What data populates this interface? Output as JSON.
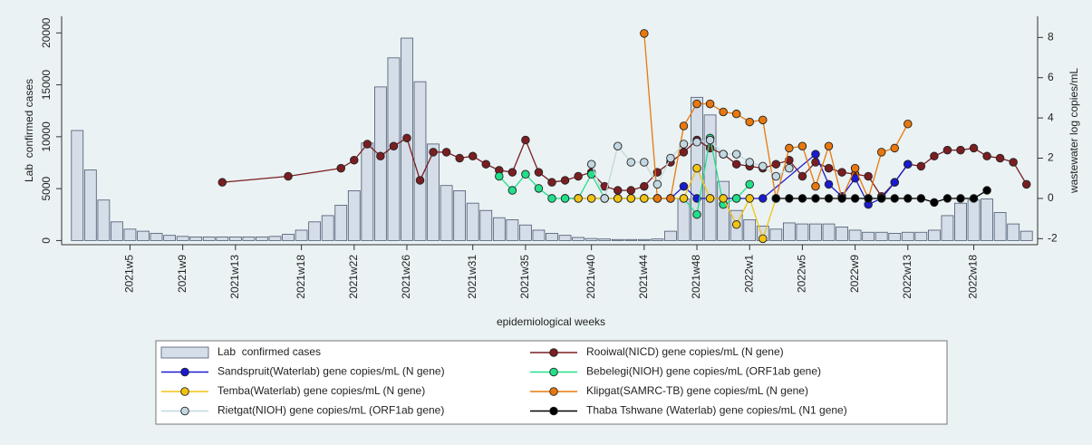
{
  "chart_data": {
    "type": "combo",
    "x_label": "epidemiological weeks",
    "y_label": "Lab  confirmed cases",
    "y2_label": "wastewater log copies/mL",
    "categories": [
      null,
      null,
      null,
      null,
      "2021w5",
      null,
      null,
      null,
      "2021w9",
      null,
      null,
      null,
      "2021w13",
      null,
      null,
      null,
      null,
      "2021w18",
      null,
      null,
      null,
      "2021w22",
      null,
      null,
      null,
      "2021w26",
      null,
      null,
      null,
      null,
      "2021w31",
      null,
      null,
      null,
      "2021w35",
      null,
      null,
      null,
      null,
      "2021w40",
      null,
      null,
      null,
      "2021w44",
      null,
      null,
      null,
      "2021w48",
      null,
      null,
      null,
      "2022w1",
      null,
      null,
      null,
      "2022w5",
      null,
      null,
      null,
      "2022w9",
      null,
      null,
      null,
      "2022w13",
      null,
      null,
      null,
      null,
      "2022w18",
      null,
      null,
      null,
      null
    ],
    "ylim": [
      -400,
      21600
    ],
    "yticks": [
      0,
      5000,
      10000,
      15000,
      20000
    ],
    "y2lim": [
      -2.3,
      9.05
    ],
    "y2ticks": [
      -2,
      0,
      2,
      4,
      6,
      8
    ],
    "series": [
      {
        "name": "Lab  confirmed cases",
        "type": "bar",
        "color": "#d5dde8",
        "values": [
          10600,
          6800,
          3900,
          1800,
          1100,
          900,
          700,
          500,
          400,
          350,
          350,
          350,
          350,
          350,
          350,
          400,
          600,
          1000,
          1800,
          2400,
          3400,
          4800,
          9400,
          14800,
          17600,
          19500,
          15300,
          9300,
          5300,
          4800,
          3600,
          2900,
          2200,
          2000,
          1500,
          1000,
          700,
          500,
          300,
          200,
          150,
          100,
          100,
          100,
          150,
          900,
          4000,
          13800,
          12100,
          5700,
          2900,
          2000,
          1400,
          1100,
          1700,
          1600,
          1600,
          1600,
          1300,
          1000,
          800,
          800,
          700,
          800,
          800,
          1000,
          2400,
          3600,
          3900,
          4000,
          2700,
          1600,
          900
        ]
      },
      {
        "name": "Rooiwal(NICD) gene copies/mL (N gene)",
        "type": "line",
        "axis": "y2",
        "color": "#7a1e22",
        "values": [
          null,
          null,
          null,
          null,
          null,
          null,
          null,
          null,
          null,
          null,
          null,
          0.8,
          null,
          null,
          null,
          null,
          1.1,
          null,
          null,
          null,
          1.5,
          1.9,
          2.7,
          2.1,
          2.6,
          3.0,
          0.9,
          2.3,
          2.3,
          2.0,
          2.1,
          1.7,
          1.4,
          1.3,
          2.9,
          1.3,
          0.8,
          0.9,
          1.1,
          1.3,
          0.6,
          0.4,
          0.4,
          0.6,
          1.3,
          1.8,
          2.3,
          2.9,
          2.5,
          2.2,
          1.7,
          1.6,
          1.5,
          1.7,
          1.9,
          1.1,
          1.8,
          1.5,
          1.3,
          1.2,
          1.1,
          0.1,
          0.8,
          1.7,
          1.6,
          2.1,
          2.4,
          2.4,
          2.5,
          2.1,
          2.0,
          1.8,
          0.7
        ]
      },
      {
        "name": "Sandspruit(Waterlab) gene copies/mL (N gene)",
        "type": "line",
        "axis": "y2",
        "color": "#1a1ad0",
        "values": [
          null,
          null,
          null,
          null,
          null,
          null,
          null,
          null,
          null,
          null,
          null,
          null,
          null,
          null,
          null,
          null,
          null,
          null,
          null,
          null,
          null,
          null,
          null,
          null,
          null,
          null,
          null,
          null,
          null,
          null,
          null,
          null,
          null,
          null,
          null,
          null,
          null,
          0,
          0,
          0,
          0,
          0,
          0,
          0,
          0,
          0,
          0.6,
          0,
          0,
          0,
          0,
          0,
          0,
          null,
          null,
          null,
          2.2,
          0.7,
          0.1,
          1.0,
          -0.3,
          0,
          0.8,
          1.7,
          null,
          null,
          null,
          null,
          null,
          null,
          null,
          null,
          null
        ]
      },
      {
        "name": "Bebelegi(NIOH) gene copies/mL (ORF1ab gene)",
        "type": "line",
        "axis": "y2",
        "color": "#22e08a",
        "values": [
          null,
          null,
          null,
          null,
          null,
          null,
          null,
          null,
          null,
          null,
          null,
          null,
          null,
          null,
          null,
          null,
          null,
          null,
          null,
          null,
          null,
          null,
          null,
          null,
          null,
          null,
          null,
          null,
          null,
          null,
          null,
          null,
          1.1,
          0.4,
          1.2,
          0.5,
          0,
          0,
          0,
          1.2,
          0,
          0,
          0,
          0,
          0,
          0,
          0,
          -0.8,
          3.0,
          -0.3,
          0,
          0.7,
          null,
          null,
          null,
          null,
          null,
          null,
          null,
          null,
          null,
          null,
          null,
          null,
          null,
          null,
          null,
          null,
          null,
          null,
          null,
          null,
          null
        ]
      },
      {
        "name": "Temba(Waterlab) gene copies/mL (N gene)",
        "type": "line",
        "axis": "y2",
        "color": "#f2c412",
        "values": [
          null,
          null,
          null,
          null,
          null,
          null,
          null,
          null,
          null,
          null,
          null,
          null,
          null,
          null,
          null,
          null,
          null,
          null,
          null,
          null,
          null,
          null,
          null,
          null,
          null,
          null,
          null,
          null,
          null,
          null,
          null,
          null,
          null,
          null,
          null,
          null,
          null,
          null,
          0,
          0,
          0,
          0,
          0,
          0,
          0,
          0,
          0,
          1.5,
          0,
          0,
          -1.3,
          0,
          -2.0,
          0,
          null,
          null,
          null,
          null,
          null,
          null,
          null,
          null,
          null,
          null,
          null,
          null,
          null,
          null,
          null,
          null,
          null,
          null,
          null
        ]
      },
      {
        "name": "Klipgat(SAMRC-TB) gene copies/mL (N gene)",
        "type": "line",
        "axis": "y2",
        "color": "#e8780e",
        "values": [
          null,
          null,
          null,
          null,
          null,
          null,
          null,
          null,
          null,
          null,
          null,
          null,
          null,
          null,
          null,
          null,
          null,
          null,
          null,
          null,
          null,
          null,
          null,
          null,
          null,
          null,
          null,
          null,
          null,
          null,
          null,
          null,
          null,
          null,
          null,
          null,
          null,
          null,
          null,
          null,
          null,
          null,
          null,
          8.2,
          0,
          0,
          3.6,
          4.7,
          4.7,
          4.3,
          4.2,
          3.8,
          3.9,
          0,
          2.5,
          2.6,
          0.6,
          2.6,
          0,
          1.5,
          0,
          2.3,
          2.5,
          3.7,
          null,
          null,
          null,
          null,
          null,
          null,
          null,
          null,
          null
        ]
      },
      {
        "name": "Rietgat(NIOH) gene copies/mL (ORF1ab gene)",
        "type": "line",
        "axis": "y2",
        "color": "#c3d7e0",
        "values": [
          null,
          null,
          null,
          null,
          null,
          null,
          null,
          null,
          null,
          null,
          null,
          null,
          null,
          null,
          null,
          null,
          null,
          null,
          null,
          null,
          null,
          null,
          null,
          null,
          null,
          null,
          null,
          null,
          null,
          null,
          null,
          null,
          null,
          null,
          null,
          null,
          null,
          null,
          null,
          1.7,
          0,
          2.6,
          1.8,
          1.8,
          0.7,
          2.0,
          2.7,
          2.8,
          2.9,
          2.2,
          2.2,
          1.8,
          1.6,
          1.1,
          1.5,
          null,
          null,
          null,
          null,
          null,
          null,
          null,
          null,
          null,
          null,
          null,
          null,
          null,
          null,
          null,
          null,
          null,
          null
        ]
      },
      {
        "name": "Thaba Tshwane (Waterlab) gene copies/mL (N1 gene)",
        "type": "line",
        "axis": "y2",
        "color": "#000000",
        "values": [
          null,
          null,
          null,
          null,
          null,
          null,
          null,
          null,
          null,
          null,
          null,
          null,
          null,
          null,
          null,
          null,
          null,
          null,
          null,
          null,
          null,
          null,
          null,
          null,
          null,
          null,
          null,
          null,
          null,
          null,
          null,
          null,
          null,
          null,
          null,
          null,
          null,
          null,
          null,
          null,
          null,
          null,
          null,
          null,
          null,
          null,
          null,
          null,
          null,
          null,
          null,
          null,
          null,
          0,
          0,
          0,
          0,
          0,
          0,
          0,
          0,
          0,
          0,
          0,
          0,
          -0.2,
          0,
          0,
          0,
          0.4,
          null,
          null,
          null
        ]
      }
    ]
  }
}
